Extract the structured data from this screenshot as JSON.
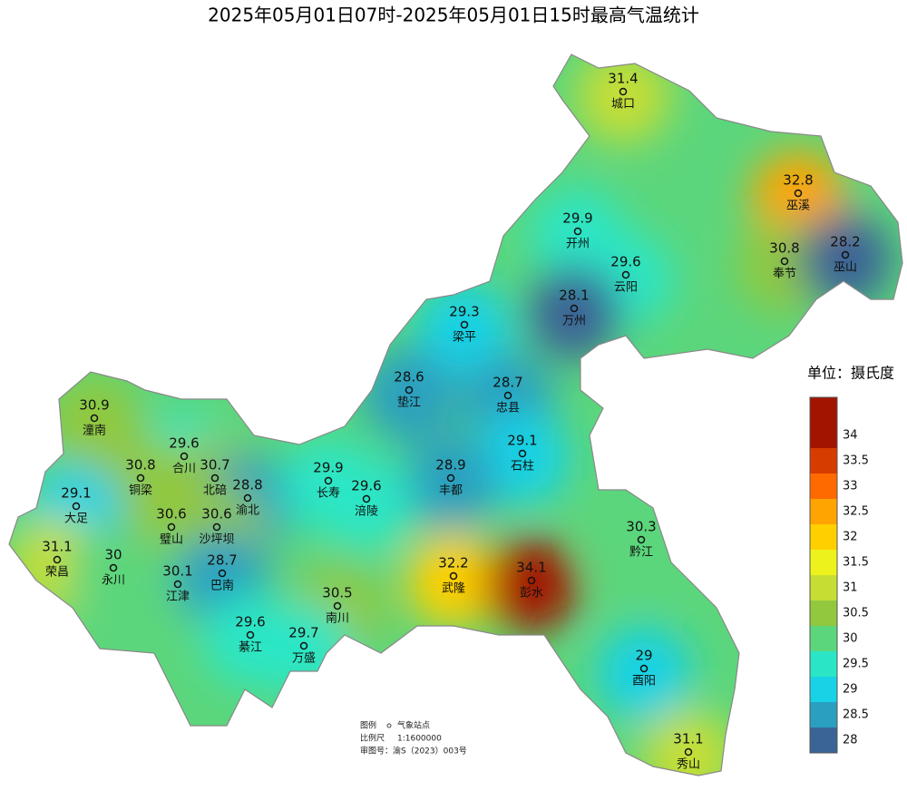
{
  "title": "2025年05月01日07时-2025年05月01日15时最高气温统计",
  "legend": {
    "title": "单位：摄氏度",
    "ticks": [
      28,
      28.5,
      29,
      29.5,
      30,
      30.5,
      31,
      31.5,
      32,
      32.5,
      33,
      33.5,
      34
    ],
    "colors": [
      "#3b6496",
      "#2a9fc0",
      "#18d2e6",
      "#2ae6c6",
      "#5cd67c",
      "#92c83e",
      "#c6de34",
      "#eef21c",
      "#ffd000",
      "#ffa400",
      "#ff6a00",
      "#d63c00",
      "#a31400"
    ]
  },
  "stations": [
    {
      "name": "城口",
      "value": 31.4
    },
    {
      "name": "巫溪",
      "value": 32.8
    },
    {
      "name": "开州",
      "value": 29.9
    },
    {
      "name": "云阳",
      "value": 29.6
    },
    {
      "name": "奉节",
      "value": 30.8
    },
    {
      "name": "巫山",
      "value": 28.2
    },
    {
      "name": "万州",
      "value": 28.1
    },
    {
      "name": "梁平",
      "value": 29.3
    },
    {
      "name": "垫江",
      "value": 28.6
    },
    {
      "name": "忠县",
      "value": 28.7
    },
    {
      "name": "石柱",
      "value": 29.1
    },
    {
      "name": "丰都",
      "value": 28.9
    },
    {
      "name": "潼南",
      "value": 30.9
    },
    {
      "name": "合川",
      "value": 29.6
    },
    {
      "name": "铜梁",
      "value": 30.8
    },
    {
      "name": "北碚",
      "value": 30.7
    },
    {
      "name": "渝北",
      "value": 28.8
    },
    {
      "name": "大足",
      "value": 29.1
    },
    {
      "name": "璧山",
      "value": 30.6
    },
    {
      "name": "沙坪坝",
      "value": 30.6
    },
    {
      "name": "长寿",
      "value": 29.9
    },
    {
      "name": "涪陵",
      "value": 29.6
    },
    {
      "name": "荣昌",
      "value": 31.1
    },
    {
      "name": "永川",
      "value": 30
    },
    {
      "name": "江津",
      "value": 30.1
    },
    {
      "name": "巴南",
      "value": 28.7
    },
    {
      "name": "武隆",
      "value": 32.2
    },
    {
      "name": "彭水",
      "value": 34.1
    },
    {
      "name": "黔江",
      "value": 30.3
    },
    {
      "name": "南川",
      "value": 30.5
    },
    {
      "name": "綦江",
      "value": 29.6
    },
    {
      "name": "万盛",
      "value": 29.7
    },
    {
      "name": "酉阳",
      "value": 29
    },
    {
      "name": "秀山",
      "value": 31.1
    }
  ],
  "notes": {
    "legend_label": "图例",
    "legend_item": "气象站点",
    "scale_label": "比例尺",
    "scale": "1:1600000",
    "map_no": "审图号：渝S（2023）003号"
  }
}
